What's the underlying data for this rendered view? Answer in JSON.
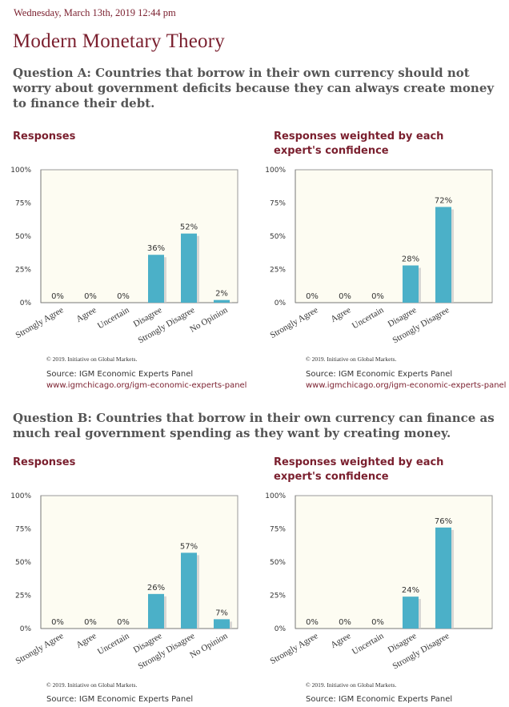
{
  "header": {
    "dateline": "Wednesday, March 13th, 2019 12:44 pm",
    "title": "Modern Monetary Theory"
  },
  "colors": {
    "accent": "#7a1f2e",
    "bar": "#4bb0c8",
    "plot_background": "#fdfcf2"
  },
  "questions": [
    {
      "text": "Question A: Countries that borrow in their own currency should not worry about government deficits because they can always create money to finance their debt.",
      "panels": [
        {
          "heading": "Responses",
          "copyright": "© 2019. Initiative on Global Markets.",
          "source": "Source: IGM Economic Experts Panel",
          "link": "www.igmchicago.org/igm-economic-experts-panel"
        },
        {
          "heading": "Responses weighted by each expert's confidence",
          "copyright": "© 2019. Initiative on Global Markets.",
          "source": "Source: IGM Economic Experts Panel",
          "link": "www.igmchicago.org/igm-economic-experts-panel"
        }
      ]
    },
    {
      "text": "Question B: Countries that borrow in their own currency can finance as much real government spending as they want by creating money.",
      "panels": [
        {
          "heading": "Responses",
          "copyright": "© 2019. Initiative on Global Markets.",
          "source": "Source: IGM Economic Experts Panel",
          "link": ""
        },
        {
          "heading": "Responses weighted by each expert's confidence",
          "copyright": "© 2019. Initiative on Global Markets.",
          "source": "Source: IGM Economic Experts Panel",
          "link": ""
        }
      ]
    }
  ],
  "chart_data": [
    {
      "type": "bar",
      "title": "Responses",
      "categories": [
        "Strongly Agree",
        "Agree",
        "Uncertain",
        "Disagree",
        "Strongly Disagree",
        "No Opinion"
      ],
      "values": [
        0,
        0,
        0,
        36,
        52,
        2
      ],
      "value_labels": [
        "0%",
        "0%",
        "0%",
        "36%",
        "52%",
        "2%"
      ],
      "yticks": [
        "0%",
        "25%",
        "50%",
        "75%",
        "100%"
      ],
      "ylim": [
        0,
        100
      ]
    },
    {
      "type": "bar",
      "title": "Responses weighted by each expert's confidence",
      "categories": [
        "Strongly Agree",
        "Agree",
        "Uncertain",
        "Disagree",
        "Strongly Disagree"
      ],
      "values": [
        0,
        0,
        0,
        28,
        72
      ],
      "value_labels": [
        "0%",
        "0%",
        "0%",
        "28%",
        "72%"
      ],
      "yticks": [
        "0%",
        "25%",
        "50%",
        "75%",
        "100%"
      ],
      "ylim": [
        0,
        100
      ]
    },
    {
      "type": "bar",
      "title": "Responses",
      "categories": [
        "Strongly Agree",
        "Agree",
        "Uncertain",
        "Disagree",
        "Strongly Disagree",
        "No Opinion"
      ],
      "values": [
        0,
        0,
        0,
        26,
        57,
        7
      ],
      "value_labels": [
        "0%",
        "0%",
        "0%",
        "26%",
        "57%",
        "7%"
      ],
      "yticks": [
        "0%",
        "25%",
        "50%",
        "75%",
        "100%"
      ],
      "ylim": [
        0,
        100
      ]
    },
    {
      "type": "bar",
      "title": "Responses weighted by each expert's confidence",
      "categories": [
        "Strongly Agree",
        "Agree",
        "Uncertain",
        "Disagree",
        "Strongly Disagree"
      ],
      "values": [
        0,
        0,
        0,
        24,
        76
      ],
      "value_labels": [
        "0%",
        "0%",
        "0%",
        "24%",
        "76%"
      ],
      "yticks": [
        "0%",
        "25%",
        "50%",
        "75%",
        "100%"
      ],
      "ylim": [
        0,
        100
      ]
    }
  ]
}
